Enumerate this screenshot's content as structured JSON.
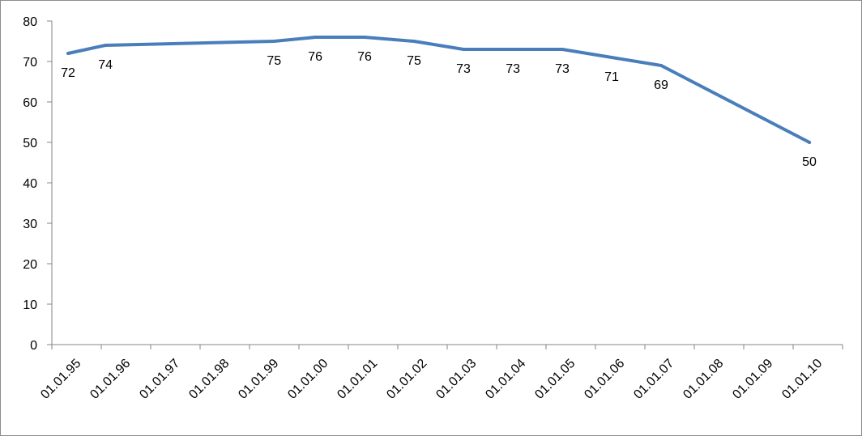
{
  "chart_data": {
    "type": "line",
    "title": "",
    "xlabel": "",
    "ylabel": "",
    "ylim": [
      0,
      80
    ],
    "yticks": [
      0,
      10,
      20,
      30,
      40,
      50,
      60,
      70,
      80
    ],
    "grid": false,
    "legend": "none",
    "line_color": "#4a7ebb",
    "categories": [
      "01.01.95",
      "01.01.96",
      "01.01.97",
      "01.01.98",
      "01.01.99",
      "01.01.00",
      "01.01.01",
      "01.01.02",
      "01.01.03",
      "01.01.04",
      "01.01.05",
      "01.01.06",
      "01.01.07",
      "01.01.08",
      "01.01.09",
      "01.01.10"
    ],
    "points": [
      {
        "x": "1995-05-01",
        "y": 72,
        "label": "72"
      },
      {
        "x": "1996-02-01",
        "y": 74,
        "label": "74"
      },
      {
        "x": "1999-07-01",
        "y": 75,
        "label": "75"
      },
      {
        "x": "2000-05-01",
        "y": 76,
        "label": "76"
      },
      {
        "x": "2001-05-01",
        "y": 76,
        "label": "76"
      },
      {
        "x": "2002-05-01",
        "y": 75,
        "label": "75"
      },
      {
        "x": "2003-05-01",
        "y": 73,
        "label": "73"
      },
      {
        "x": "2004-05-01",
        "y": 73,
        "label": "73"
      },
      {
        "x": "2005-05-01",
        "y": 73,
        "label": "73"
      },
      {
        "x": "2006-05-01",
        "y": 71,
        "label": "71"
      },
      {
        "x": "2007-05-01",
        "y": 69,
        "label": "69"
      },
      {
        "x": "2010-05-01",
        "y": 50,
        "label": "50"
      }
    ]
  }
}
